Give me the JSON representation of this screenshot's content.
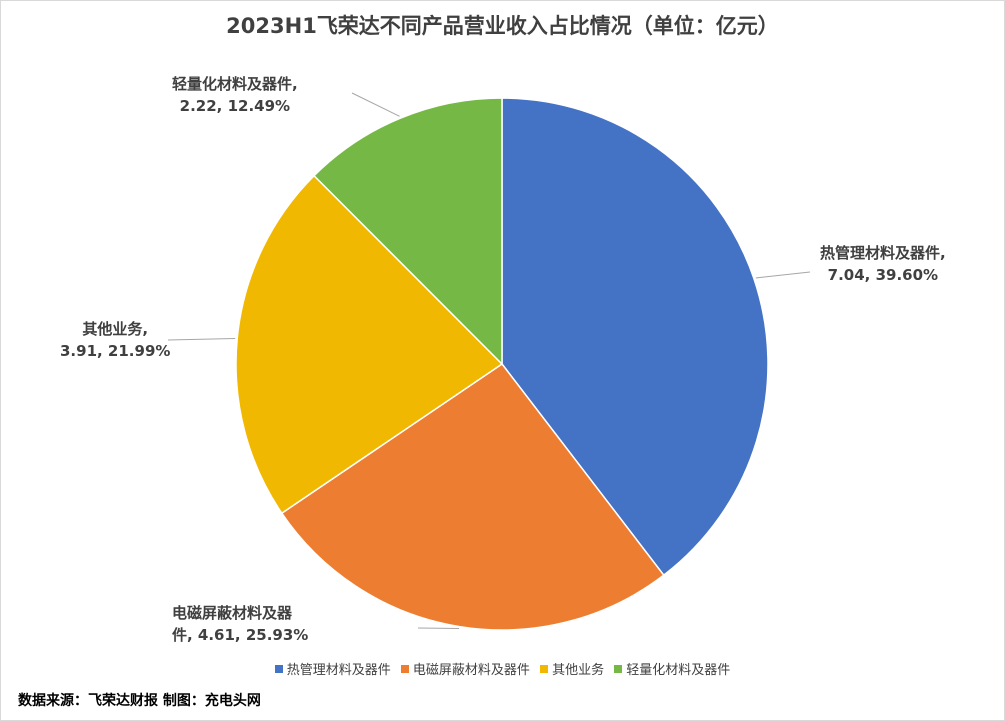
{
  "title": "2023H1飞荣达不同产品营业收入占比情况（单位：亿元）",
  "source": "数据来源：飞荣达财报  制图：充电头网",
  "chart_data": {
    "type": "pie",
    "title": "2023H1飞荣达不同产品营业收入占比情况（单位：亿元）",
    "unit": "亿元",
    "legend_position": "bottom",
    "slices": [
      {
        "name": "热管理材料及器件",
        "value": 7.04,
        "percent": "39.60%",
        "color": "#4472C4",
        "label_line1": "热管理材料及器件,",
        "label_line2": "7.04, 39.60%"
      },
      {
        "name": "电磁屏蔽材料及器件",
        "value": 4.61,
        "percent": "25.93%",
        "color": "#ED7D31",
        "label_line1": "电磁屏蔽材料及器",
        "label_line2": "件, 4.61, 25.93%"
      },
      {
        "name": "其他业务",
        "value": 3.91,
        "percent": "21.99%",
        "color": "#F0B800",
        "label_line1": "其他业务,",
        "label_line2": "3.91, 21.99%"
      },
      {
        "name": "轻量化材料及器件",
        "value": 2.22,
        "percent": "12.49%",
        "color": "#76B845",
        "label_line1": "轻量化材料及器件,",
        "label_line2": "2.22, 12.49%"
      }
    ]
  }
}
